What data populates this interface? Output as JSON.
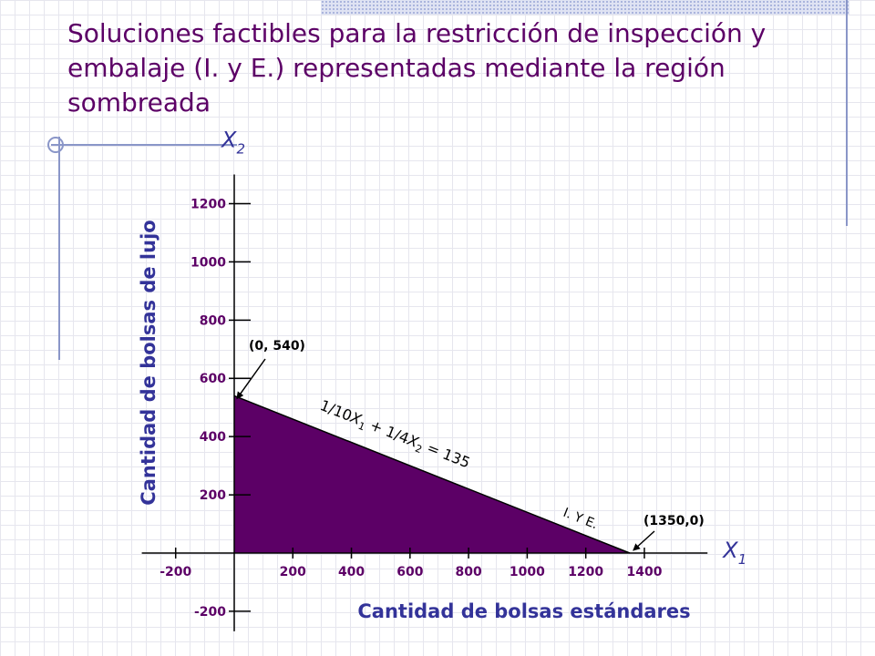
{
  "slide": {
    "title": "Soluciones factibles para la restricción de inspección y embalaje (I. y E.) representadas mediante la región sombreada"
  },
  "chart_data": {
    "type": "area",
    "x_axis": {
      "name": "X",
      "subscript": "1",
      "label": "Cantidad de bolsas estándares",
      "ticks": [
        -200,
        200,
        400,
        600,
        800,
        1000,
        1200,
        1400
      ],
      "range": [
        -300,
        1600
      ]
    },
    "y_axis": {
      "name": "X",
      "subscript": "2",
      "label": "Cantidad de bolsas de lujo",
      "ticks": [
        -200,
        200,
        400,
        600,
        800,
        1000,
        1200
      ],
      "range": [
        -250,
        1300
      ]
    },
    "feasible_region": {
      "vertices": [
        [
          0,
          0
        ],
        [
          0,
          540
        ],
        [
          1350,
          0
        ]
      ],
      "color": "#5c0066"
    },
    "constraint_line": {
      "points": [
        [
          0,
          540
        ],
        [
          1350,
          0
        ]
      ],
      "equation": {
        "coef1": "1/10",
        "var1": "X",
        "sub1": "1",
        "op": "+",
        "coef2": "1/4",
        "var2": "X",
        "sub2": "2",
        "rhs": "= 135"
      },
      "name": "I. Y E."
    },
    "annotations": [
      {
        "label": "(0, 540)",
        "point": [
          0,
          540
        ]
      },
      {
        "label": "(1350,0)",
        "point": [
          1350,
          0
        ]
      }
    ],
    "colors": {
      "tick_labels": "#5c0066",
      "axis_titles": "#333399",
      "region": "#5c0066"
    }
  }
}
